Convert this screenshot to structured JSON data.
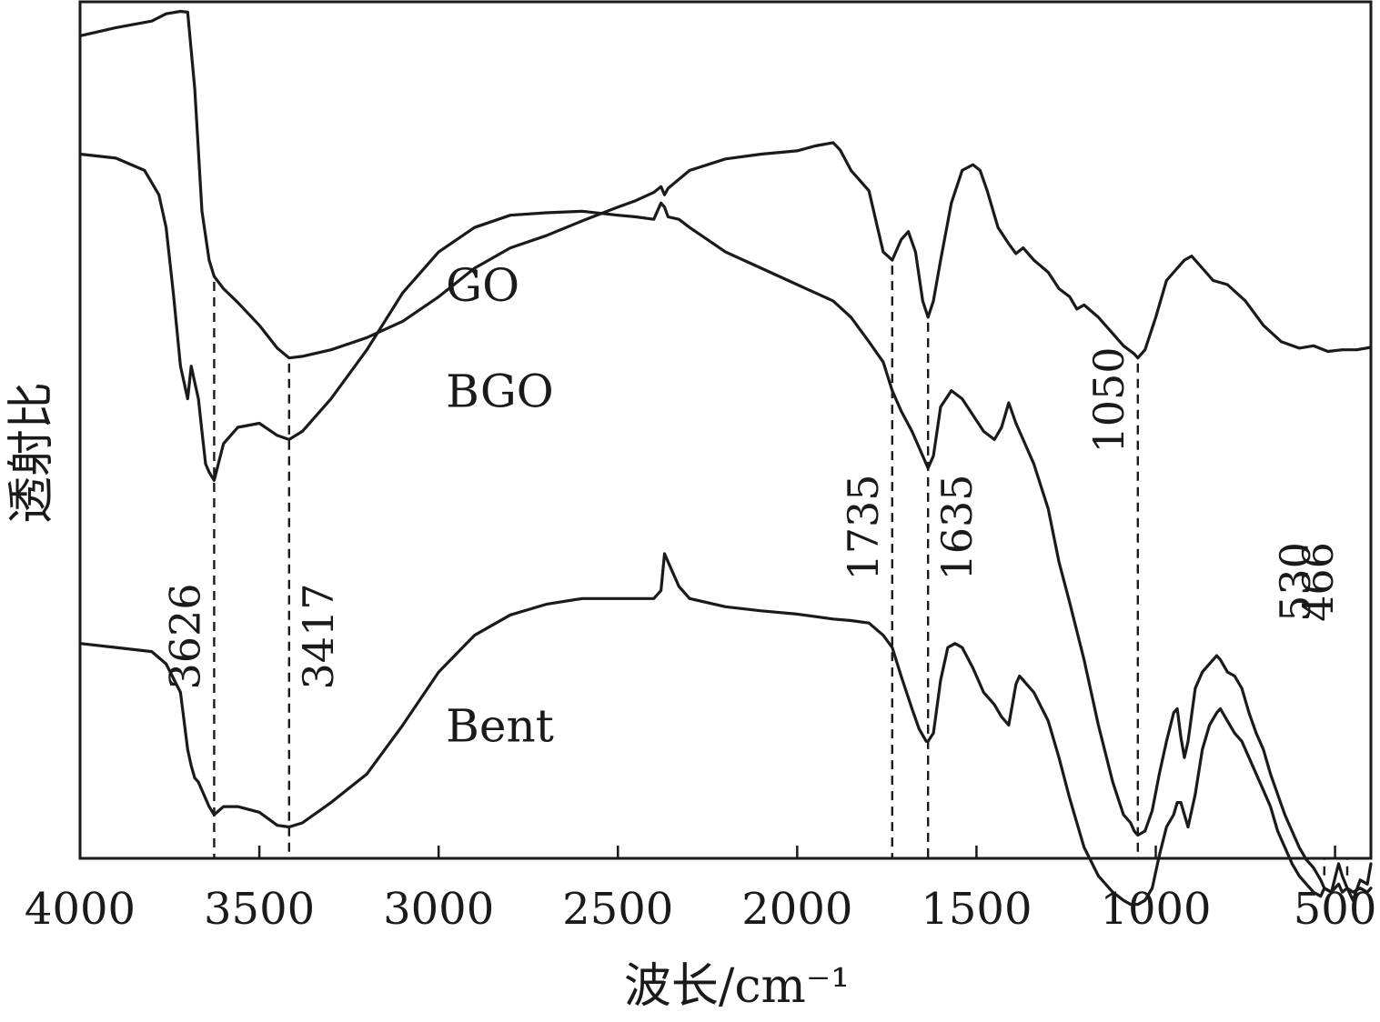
{
  "chart_data": {
    "type": "line",
    "xlabel": "波长/cm⁻¹",
    "ylabel": "透射比",
    "xlim": [
      4000,
      400
    ],
    "x_reversed": true,
    "x_ticks": [
      4000,
      3500,
      3000,
      2500,
      2000,
      1500,
      1000,
      500
    ],
    "y_ticks_shown": false,
    "grid": false,
    "legend": "inline labels",
    "series": [
      {
        "name": "GO",
        "x": [
          4000,
          3900,
          3800,
          3760,
          3720,
          3700,
          3680,
          3660,
          3640,
          3626,
          3600,
          3560,
          3500,
          3450,
          3417,
          3380,
          3300,
          3200,
          3100,
          3000,
          2900,
          2800,
          2700,
          2600,
          2500,
          2450,
          2400,
          2380,
          2370,
          2360,
          2300,
          2200,
          2100,
          2000,
          1950,
          1900,
          1880,
          1850,
          1800,
          1760,
          1735,
          1710,
          1690,
          1670,
          1650,
          1635,
          1620,
          1600,
          1570,
          1540,
          1510,
          1490,
          1470,
          1440,
          1410,
          1390,
          1370,
          1340,
          1300,
          1270,
          1240,
          1220,
          1200,
          1160,
          1120,
          1090,
          1060,
          1050,
          1030,
          1000,
          970,
          940,
          920,
          900,
          870,
          840,
          800,
          750,
          700,
          650,
          600,
          560,
          520,
          480,
          440,
          400
        ],
        "y": [
          96.5,
          97.5,
          98.3,
          99.2,
          99.5,
          99.4,
          90,
          75,
          69,
          67,
          65.5,
          63.8,
          61,
          58.2,
          57,
          57.2,
          58,
          59.5,
          61.5,
          64.5,
          68,
          70.5,
          72,
          73.8,
          75.5,
          76.3,
          77.3,
          78,
          77,
          77.8,
          80,
          81.4,
          82,
          82.4,
          83,
          83.4,
          82.5,
          80,
          77.5,
          70,
          69,
          71.5,
          72.5,
          70,
          64,
          62,
          64,
          69,
          76,
          80,
          80.7,
          80,
          77.5,
          73,
          71,
          69.8,
          70.5,
          69,
          67.5,
          65.5,
          64.5,
          63,
          63.5,
          62,
          60,
          58.5,
          57.5,
          57,
          58,
          62,
          66.5,
          68,
          69,
          69.5,
          68,
          66.5,
          66,
          64,
          61,
          59,
          58.2,
          58.5,
          57.8,
          58,
          58,
          58.3
        ]
      },
      {
        "name": "BGO",
        "x": [
          4000,
          3900,
          3820,
          3780,
          3760,
          3740,
          3720,
          3700,
          3690,
          3680,
          3670,
          3660,
          3650,
          3640,
          3626,
          3600,
          3560,
          3500,
          3450,
          3417,
          3380,
          3300,
          3200,
          3100,
          3000,
          2900,
          2800,
          2700,
          2600,
          2500,
          2450,
          2400,
          2380,
          2370,
          2360,
          2330,
          2300,
          2200,
          2100,
          2000,
          1900,
          1850,
          1800,
          1760,
          1735,
          1710,
          1680,
          1660,
          1640,
          1635,
          1620,
          1600,
          1570,
          1540,
          1510,
          1480,
          1450,
          1430,
          1410,
          1390,
          1370,
          1340,
          1300,
          1270,
          1240,
          1200,
          1160,
          1120,
          1090,
          1070,
          1060,
          1050,
          1030,
          1010,
          990,
          970,
          950,
          940,
          930,
          920,
          910,
          890,
          870,
          850,
          830,
          820,
          800,
          780,
          760,
          740,
          720,
          700,
          680,
          660,
          640,
          620,
          600,
          580,
          560,
          540,
          530,
          510,
          490,
          480,
          466,
          450,
          430,
          410,
          400
        ],
        "y": [
          82,
          81.5,
          80,
          77,
          73,
          65,
          56,
          52,
          56,
          54,
          52,
          48,
          44,
          43,
          42,
          46.5,
          48.5,
          49,
          47.5,
          47,
          48,
          52,
          58,
          65,
          70,
          73,
          74.5,
          74.8,
          75,
          74.5,
          74.3,
          74,
          76,
          75.5,
          74.3,
          74,
          73,
          70,
          68,
          66,
          64,
          62,
          59,
          56.5,
          53,
          50.5,
          48,
          46,
          44,
          43.5,
          45,
          51,
          53,
          52,
          50,
          48,
          47,
          48.5,
          51.5,
          49,
          47,
          44,
          38.5,
          32,
          27,
          20,
          12,
          5,
          1,
          0,
          -1,
          -1.5,
          -1,
          1.5,
          6,
          10,
          13.5,
          14,
          10.5,
          8,
          10,
          16.5,
          18.5,
          19.5,
          20.5,
          20,
          18.5,
          18,
          16.5,
          13.5,
          11,
          9,
          6,
          3.5,
          1,
          -1,
          -3,
          -4.5,
          -5.5,
          -7,
          -8,
          -8.5,
          -5,
          -6.5,
          -8,
          -9.5,
          -7,
          -7.5,
          -5
        ]
      },
      {
        "name": "Bent",
        "x": [
          4000,
          3900,
          3800,
          3760,
          3720,
          3700,
          3690,
          3680,
          3670,
          3660,
          3640,
          3626,
          3600,
          3560,
          3500,
          3450,
          3417,
          3380,
          3300,
          3200,
          3100,
          3000,
          2900,
          2800,
          2700,
          2600,
          2500,
          2450,
          2400,
          2380,
          2370,
          2360,
          2330,
          2300,
          2200,
          2100,
          2000,
          1900,
          1850,
          1800,
          1760,
          1735,
          1710,
          1680,
          1660,
          1640,
          1635,
          1620,
          1600,
          1580,
          1560,
          1540,
          1510,
          1480,
          1450,
          1430,
          1410,
          1390,
          1380,
          1370,
          1340,
          1300,
          1270,
          1240,
          1200,
          1160,
          1120,
          1090,
          1070,
          1060,
          1050,
          1030,
          1010,
          990,
          970,
          950,
          940,
          930,
          920,
          910,
          890,
          870,
          850,
          830,
          820,
          800,
          780,
          760,
          740,
          720,
          700,
          680,
          660,
          640,
          620,
          600,
          580,
          560,
          540,
          530,
          510,
          490,
          480,
          466,
          450,
          430,
          410,
          400
        ],
        "y": [
          22,
          21.5,
          21,
          19.5,
          16,
          9,
          7,
          5.5,
          5,
          4,
          2,
          1,
          2,
          2,
          1.3,
          -0.3,
          -0.5,
          0,
          2.5,
          6,
          12,
          18.5,
          23,
          25.5,
          26.8,
          27.5,
          27.5,
          27.5,
          27.5,
          28.5,
          33,
          32,
          29,
          27.5,
          26.5,
          26,
          25.6,
          25,
          24.8,
          24.5,
          23,
          21.5,
          18,
          14,
          11.5,
          10,
          10,
          11,
          17.5,
          21.5,
          22,
          21.5,
          19,
          16,
          14.5,
          13,
          12,
          17,
          18,
          17.5,
          16,
          12.5,
          8,
          3,
          -3,
          -6.5,
          -8.5,
          -9.5,
          -10,
          -10,
          -10,
          -9.5,
          -8,
          -4,
          -0.5,
          1,
          2.5,
          2.5,
          1,
          -0.5,
          3.5,
          9,
          12,
          13.5,
          14,
          12.5,
          11,
          10,
          8,
          6,
          4,
          2,
          -1,
          -3,
          -5,
          -6.5,
          -7.5,
          -8.5,
          -9,
          -8,
          -8.5,
          -7.5,
          -8.5,
          -8,
          -8.5,
          -8,
          -8.5,
          -8
        ]
      }
    ],
    "series_labels": [
      {
        "name": "GO",
        "x": 3000,
        "y": 66
      },
      {
        "name": "BGO",
        "x": 3000,
        "y": 53
      },
      {
        "name": "Bent",
        "x": 3000,
        "y": 12
      }
    ],
    "reference_lines": [
      {
        "x": 3626,
        "label": "3626",
        "label_side": "left"
      },
      {
        "x": 3417,
        "label": "3417",
        "label_side": "right"
      },
      {
        "x": 1735,
        "label": "1735",
        "label_side": "left"
      },
      {
        "x": 1635,
        "label": "1635",
        "label_side": "right"
      },
      {
        "x": 1050,
        "label": "1050",
        "label_side": "left"
      },
      {
        "x": 530,
        "label": "530",
        "label_side": "left"
      },
      {
        "x": 466,
        "label": "466",
        "label_side": "left"
      }
    ]
  }
}
